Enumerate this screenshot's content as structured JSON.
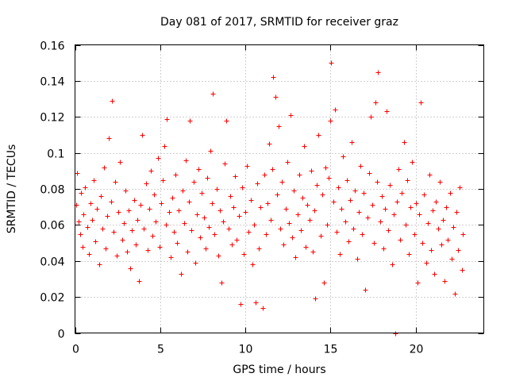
{
  "chart_data": {
    "type": "scatter",
    "title": "Day 081 of 2017, SRMTID for receiver graz",
    "xlabel": "GPS time / hours",
    "ylabel": "SRMTID / TECUs",
    "xlim": [
      0,
      24
    ],
    "ylim": [
      0,
      0.16
    ],
    "x_ticks": [
      0,
      5,
      10,
      15,
      20
    ],
    "x_tick_labels": [
      "0",
      "5",
      "10",
      "15",
      "20"
    ],
    "y_ticks": [
      0,
      0.02,
      0.04,
      0.06,
      0.08,
      0.1,
      0.12,
      0.14,
      0.16
    ],
    "y_tick_labels": [
      "0",
      "0.02",
      "0.04",
      "0.06",
      "0.08",
      "0.1",
      "0.12",
      "0.14",
      "0.16"
    ],
    "grid": true,
    "marker": "plus",
    "series_color": "#ff0000",
    "series": [
      {
        "name": "SRMTID",
        "points": [
          [
            0.05,
            0.071
          ],
          [
            0.12,
            0.089
          ],
          [
            0.2,
            0.062
          ],
          [
            0.3,
            0.055
          ],
          [
            0.35,
            0.078
          ],
          [
            0.45,
            0.048
          ],
          [
            0.5,
            0.066
          ],
          [
            0.6,
            0.081
          ],
          [
            0.7,
            0.059
          ],
          [
            0.8,
            0.044
          ],
          [
            0.9,
            0.072
          ],
          [
            1.0,
            0.063
          ],
          [
            1.1,
            0.085
          ],
          [
            1.2,
            0.051
          ],
          [
            1.3,
            0.069
          ],
          [
            1.4,
            0.038
          ],
          [
            1.5,
            0.076
          ],
          [
            1.6,
            0.058
          ],
          [
            1.7,
            0.092
          ],
          [
            1.8,
            0.047
          ],
          [
            1.9,
            0.065
          ],
          [
            2.0,
            0.108
          ],
          [
            2.1,
            0.073
          ],
          [
            2.15,
            0.129
          ],
          [
            2.25,
            0.056
          ],
          [
            2.35,
            0.084
          ],
          [
            2.45,
            0.043
          ],
          [
            2.55,
            0.067
          ],
          [
            2.65,
            0.095
          ],
          [
            2.75,
            0.052
          ],
          [
            2.85,
            0.061
          ],
          [
            2.95,
            0.079
          ],
          [
            3.05,
            0.045
          ],
          [
            3.15,
            0.068
          ],
          [
            3.25,
            0.036
          ],
          [
            3.35,
            0.057
          ],
          [
            3.45,
            0.074
          ],
          [
            3.55,
            0.049
          ],
          [
            3.65,
            0.063
          ],
          [
            3.75,
            0.029
          ],
          [
            3.85,
            0.071
          ],
          [
            3.95,
            0.11
          ],
          [
            4.05,
            0.058
          ],
          [
            4.15,
            0.083
          ],
          [
            4.25,
            0.046
          ],
          [
            4.35,
            0.069
          ],
          [
            4.45,
            0.09
          ],
          [
            4.55,
            0.054
          ],
          [
            4.65,
            0.077
          ],
          [
            4.75,
            0.062
          ],
          [
            4.85,
            0.097
          ],
          [
            4.95,
            0.048
          ],
          [
            5.05,
            0.072
          ],
          [
            5.15,
            0.085
          ],
          [
            5.25,
            0.104
          ],
          [
            5.35,
            0.06
          ],
          [
            5.4,
            0.119
          ],
          [
            5.5,
            0.067
          ],
          [
            5.6,
            0.042
          ],
          [
            5.7,
            0.075
          ],
          [
            5.8,
            0.056
          ],
          [
            5.9,
            0.088
          ],
          [
            6.0,
            0.05
          ],
          [
            6.1,
            0.068
          ],
          [
            6.2,
            0.033
          ],
          [
            6.3,
            0.079
          ],
          [
            6.4,
            0.061
          ],
          [
            6.5,
            0.096
          ],
          [
            6.6,
            0.045
          ],
          [
            6.7,
            0.073
          ],
          [
            6.75,
            0.118
          ],
          [
            6.85,
            0.057
          ],
          [
            6.95,
            0.084
          ],
          [
            7.05,
            0.039
          ],
          [
            7.15,
            0.066
          ],
          [
            7.25,
            0.091
          ],
          [
            7.35,
            0.053
          ],
          [
            7.45,
            0.078
          ],
          [
            7.55,
            0.064
          ],
          [
            7.65,
            0.047
          ],
          [
            7.75,
            0.086
          ],
          [
            7.85,
            0.059
          ],
          [
            7.95,
            0.101
          ],
          [
            8.05,
            0.072
          ],
          [
            8.1,
            0.133
          ],
          [
            8.2,
            0.055
          ],
          [
            8.3,
            0.08
          ],
          [
            8.4,
            0.043
          ],
          [
            8.5,
            0.068
          ],
          [
            8.6,
            0.028
          ],
          [
            8.7,
            0.062
          ],
          [
            8.8,
            0.094
          ],
          [
            8.9,
            0.118
          ],
          [
            9.0,
            0.058
          ],
          [
            9.1,
            0.076
          ],
          [
            9.2,
            0.049
          ],
          [
            9.3,
            0.07
          ],
          [
            9.4,
            0.087
          ],
          [
            9.5,
            0.052
          ],
          [
            9.6,
            0.065
          ],
          [
            9.7,
            0.016
          ],
          [
            9.8,
            0.081
          ],
          [
            9.9,
            0.044
          ],
          [
            10.0,
            0.067
          ],
          [
            10.1,
            0.093
          ],
          [
            10.2,
            0.056
          ],
          [
            10.3,
            0.074
          ],
          [
            10.4,
            0.038
          ],
          [
            10.5,
            0.06
          ],
          [
            10.6,
            0.017
          ],
          [
            10.7,
            0.083
          ],
          [
            10.8,
            0.047
          ],
          [
            10.9,
            0.07
          ],
          [
            11.0,
            0.014
          ],
          [
            11.1,
            0.088
          ],
          [
            11.2,
            0.055
          ],
          [
            11.3,
            0.072
          ],
          [
            11.4,
            0.105
          ],
          [
            11.5,
            0.063
          ],
          [
            11.6,
            0.091
          ],
          [
            11.65,
            0.142
          ],
          [
            11.75,
            0.131
          ],
          [
            11.85,
            0.077
          ],
          [
            11.95,
            0.115
          ],
          [
            12.05,
            0.058
          ],
          [
            12.15,
            0.084
          ],
          [
            12.25,
            0.049
          ],
          [
            12.35,
            0.069
          ],
          [
            12.45,
            0.095
          ],
          [
            12.55,
            0.061
          ],
          [
            12.65,
            0.121
          ],
          [
            12.75,
            0.053
          ],
          [
            12.85,
            0.079
          ],
          [
            12.95,
            0.042
          ],
          [
            13.05,
            0.066
          ],
          [
            13.15,
            0.088
          ],
          [
            13.25,
            0.057
          ],
          [
            13.35,
            0.075
          ],
          [
            13.45,
            0.104
          ],
          [
            13.55,
            0.048
          ],
          [
            13.65,
            0.071
          ],
          [
            13.75,
            0.063
          ],
          [
            13.85,
            0.09
          ],
          [
            13.95,
            0.045
          ],
          [
            14.05,
            0.068
          ],
          [
            14.1,
            0.019
          ],
          [
            14.2,
            0.082
          ],
          [
            14.3,
            0.11
          ],
          [
            14.4,
            0.054
          ],
          [
            14.5,
            0.077
          ],
          [
            14.6,
            0.028
          ],
          [
            14.7,
            0.092
          ],
          [
            14.8,
            0.06
          ],
          [
            14.9,
            0.086
          ],
          [
            15.0,
            0.118
          ],
          [
            15.05,
            0.15
          ],
          [
            15.15,
            0.073
          ],
          [
            15.25,
            0.124
          ],
          [
            15.35,
            0.056
          ],
          [
            15.45,
            0.081
          ],
          [
            15.55,
            0.044
          ],
          [
            15.65,
            0.069
          ],
          [
            15.75,
            0.098
          ],
          [
            15.85,
            0.062
          ],
          [
            15.95,
            0.085
          ],
          [
            16.05,
            0.051
          ],
          [
            16.15,
            0.074
          ],
          [
            16.25,
            0.106
          ],
          [
            16.35,
            0.058
          ],
          [
            16.45,
            0.079
          ],
          [
            16.55,
            0.041
          ],
          [
            16.65,
            0.067
          ],
          [
            16.75,
            0.093
          ],
          [
            16.85,
            0.055
          ],
          [
            16.95,
            0.078
          ],
          [
            17.05,
            0.024
          ],
          [
            17.15,
            0.064
          ],
          [
            17.25,
            0.089
          ],
          [
            17.35,
            0.12
          ],
          [
            17.45,
            0.071
          ],
          [
            17.55,
            0.05
          ],
          [
            17.65,
            0.128
          ],
          [
            17.75,
            0.084
          ],
          [
            17.8,
            0.145
          ],
          [
            17.9,
            0.062
          ],
          [
            18.0,
            0.076
          ],
          [
            18.1,
            0.047
          ],
          [
            18.2,
            0.069
          ],
          [
            18.3,
            0.123
          ],
          [
            18.4,
            0.057
          ],
          [
            18.5,
            0.082
          ],
          [
            18.6,
            0.038
          ],
          [
            18.7,
            0.066
          ],
          [
            18.8,
            0.0
          ],
          [
            18.9,
            0.073
          ],
          [
            19.0,
            0.091
          ],
          [
            19.1,
            0.052
          ],
          [
            19.2,
            0.078
          ],
          [
            19.3,
            0.106
          ],
          [
            19.4,
            0.06
          ],
          [
            19.5,
            0.085
          ],
          [
            19.6,
            0.044
          ],
          [
            19.7,
            0.07
          ],
          [
            19.8,
            0.095
          ],
          [
            19.9,
            0.055
          ],
          [
            20.0,
            0.072
          ],
          [
            20.1,
            0.028
          ],
          [
            20.2,
            0.066
          ],
          [
            20.3,
            0.128
          ],
          [
            20.4,
            0.05
          ],
          [
            20.5,
            0.077
          ],
          [
            20.6,
            0.039
          ],
          [
            20.7,
            0.061
          ],
          [
            20.8,
            0.088
          ],
          [
            20.9,
            0.046
          ],
          [
            21.0,
            0.068
          ],
          [
            21.1,
            0.033
          ],
          [
            21.2,
            0.073
          ],
          [
            21.3,
            0.058
          ],
          [
            21.4,
            0.084
          ],
          [
            21.5,
            0.049
          ],
          [
            21.6,
            0.063
          ],
          [
            21.7,
            0.029
          ],
          [
            21.8,
            0.07
          ],
          [
            21.9,
            0.052
          ],
          [
            22.0,
            0.078
          ],
          [
            22.1,
            0.041
          ],
          [
            22.2,
            0.059
          ],
          [
            22.3,
            0.022
          ],
          [
            22.4,
            0.067
          ],
          [
            22.5,
            0.046
          ],
          [
            22.6,
            0.081
          ],
          [
            22.7,
            0.035
          ],
          [
            22.75,
            0.055
          ]
        ]
      }
    ]
  }
}
